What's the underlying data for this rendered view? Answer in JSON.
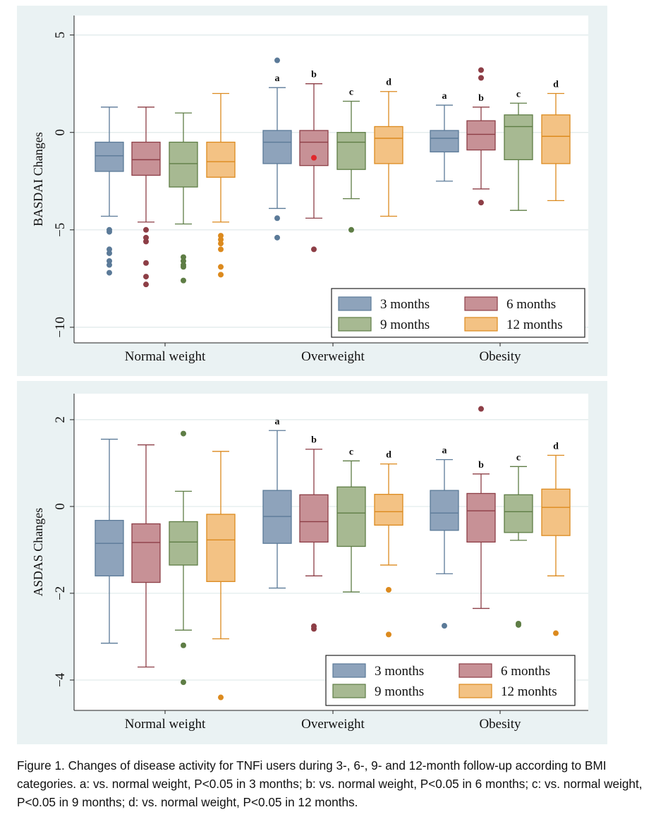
{
  "chart_data": [
    {
      "type": "box",
      "title": "",
      "ylabel": "BASDAI Changes",
      "xlabel": "",
      "ylim": [
        -10.8,
        6
      ],
      "yticks": [
        5,
        0,
        -5,
        -10
      ],
      "ytick_labels": [
        "5",
        "0",
        "−5",
        "−10"
      ],
      "grid": true,
      "legend": {
        "placement": "bottom-right",
        "columns": 2
      },
      "categories": [
        "Normal weight",
        "Overweight",
        "Obesity"
      ],
      "series": [
        {
          "name": "3 months",
          "color": "#5b7a98",
          "fill": "#8ea3bb",
          "boxes": [
            {
              "whislo": -4.3,
              "q1": -2.0,
              "med": -1.2,
              "q3": -0.5,
              "whishi": 1.3,
              "fliers": [
                -5.0,
                -5.1,
                -6.0,
                -6.2,
                -6.6,
                -6.8,
                -7.2
              ]
            },
            {
              "whislo": -3.9,
              "q1": -1.6,
              "med": -0.5,
              "q3": 0.1,
              "whishi": 2.3,
              "fliers": [
                3.7,
                -4.4,
                -5.4
              ],
              "sig": "a"
            },
            {
              "whislo": -2.5,
              "q1": -1.0,
              "med": -0.3,
              "q3": 0.1,
              "whishi": 1.4,
              "fliers": [],
              "sig": "a"
            }
          ]
        },
        {
          "name": "6 months",
          "color": "#8d3e46",
          "fill": "#c79196",
          "boxes": [
            {
              "whislo": -4.6,
              "q1": -2.2,
              "med": -1.4,
              "q3": -0.5,
              "whishi": 1.3,
              "fliers": [
                -5.0,
                -5.4,
                -5.6,
                -6.7,
                -7.4,
                -7.8
              ]
            },
            {
              "whislo": -4.4,
              "q1": -1.7,
              "med": -0.5,
              "q3": 0.1,
              "whishi": 2.5,
              "fliers": [
                -6.0
              ],
              "mean": -1.3,
              "sig": "b"
            },
            {
              "whislo": -2.9,
              "q1": -0.9,
              "med": -0.1,
              "q3": 0.6,
              "whishi": 1.3,
              "fliers": [
                3.2,
                2.8,
                -3.6
              ],
              "sig": "b"
            }
          ]
        },
        {
          "name": "9 months",
          "color": "#5e7d45",
          "fill": "#a7b992",
          "boxes": [
            {
              "whislo": -4.7,
              "q1": -2.8,
              "med": -1.6,
              "q3": -0.5,
              "whishi": 1.0,
              "fliers": [
                -6.4,
                -6.6,
                -6.8,
                -6.9,
                -7.6
              ]
            },
            {
              "whislo": -3.4,
              "q1": -1.9,
              "med": -0.5,
              "q3": 0.0,
              "whishi": 1.6,
              "fliers": [
                -5.0
              ],
              "sig": "c"
            },
            {
              "whislo": -4.0,
              "q1": -1.4,
              "med": 0.3,
              "q3": 0.9,
              "whishi": 1.5,
              "fliers": [],
              "sig": "c"
            }
          ]
        },
        {
          "name": "12 months",
          "color": "#dc8a1e",
          "fill": "#f3c284",
          "boxes": [
            {
              "whislo": -4.6,
              "q1": -2.3,
              "med": -1.5,
              "q3": -0.5,
              "whishi": 2.0,
              "fliers": [
                -5.3,
                -5.5,
                -5.7,
                -6.0,
                -6.9,
                -7.3
              ]
            },
            {
              "whislo": -4.3,
              "q1": -1.6,
              "med": -0.3,
              "q3": 0.3,
              "whishi": 2.1,
              "fliers": [],
              "sig": "d"
            },
            {
              "whislo": -3.5,
              "q1": -1.6,
              "med": -0.2,
              "q3": 0.9,
              "whishi": 2.0,
              "fliers": [],
              "sig": "d"
            }
          ]
        }
      ]
    },
    {
      "type": "box",
      "title": "",
      "ylabel": "ASDAS Changes",
      "xlabel": "",
      "ylim": [
        -4.7,
        2.6
      ],
      "yticks": [
        2,
        0,
        -2,
        -4
      ],
      "ytick_labels": [
        "2",
        "0",
        "−2",
        "−4"
      ],
      "grid": true,
      "legend": {
        "placement": "bottom-right",
        "columns": 2
      },
      "categories": [
        "Normal weight",
        "Overweight",
        "Obesity"
      ],
      "series": [
        {
          "name": "3 months",
          "color": "#5b7a98",
          "fill": "#8ea3bb",
          "boxes": [
            {
              "whislo": -3.15,
              "q1": -1.6,
              "med": -0.85,
              "q3": -0.32,
              "whishi": 1.55,
              "fliers": []
            },
            {
              "whislo": -1.88,
              "q1": -0.85,
              "med": -0.23,
              "q3": 0.37,
              "whishi": 1.75,
              "fliers": [],
              "sig": "a"
            },
            {
              "whislo": -1.55,
              "q1": -0.55,
              "med": -0.15,
              "q3": 0.37,
              "whishi": 1.08,
              "fliers": [
                -2.75
              ],
              "sig": "a"
            }
          ]
        },
        {
          "name": "6 months",
          "color": "#8d3e46",
          "fill": "#c79196",
          "boxes": [
            {
              "whislo": -3.7,
              "q1": -1.75,
              "med": -0.83,
              "q3": -0.4,
              "whishi": 1.42,
              "fliers": []
            },
            {
              "whislo": -1.6,
              "q1": -0.82,
              "med": -0.35,
              "q3": 0.27,
              "whishi": 1.32,
              "fliers": [
                -2.76,
                -2.82
              ],
              "sig": "b"
            },
            {
              "whislo": -2.35,
              "q1": -0.82,
              "med": -0.1,
              "q3": 0.3,
              "whishi": 0.75,
              "fliers": [
                2.25
              ],
              "sig": "b"
            }
          ]
        },
        {
          "name": "9 months",
          "color": "#5e7d45",
          "fill": "#a7b992",
          "boxes": [
            {
              "whislo": -2.85,
              "q1": -1.35,
              "med": -0.82,
              "q3": -0.35,
              "whishi": 0.35,
              "fliers": [
                1.68,
                -3.2,
                -4.05
              ]
            },
            {
              "whislo": -1.97,
              "q1": -0.92,
              "med": -0.15,
              "q3": 0.45,
              "whishi": 1.05,
              "fliers": [],
              "sig": "c"
            },
            {
              "whislo": -0.78,
              "q1": -0.6,
              "med": -0.12,
              "q3": 0.27,
              "whishi": 0.92,
              "fliers": [
                -2.7,
                -2.73
              ],
              "sig": "c"
            }
          ]
        },
        {
          "name": "12 monhts",
          "color": "#dc8a1e",
          "fill": "#f3c284",
          "boxes": [
            {
              "whislo": -3.05,
              "q1": -1.73,
              "med": -0.77,
              "q3": -0.18,
              "whishi": 1.27,
              "fliers": [
                -4.4
              ]
            },
            {
              "whislo": -1.35,
              "q1": -0.43,
              "med": -0.12,
              "q3": 0.28,
              "whishi": 0.98,
              "fliers": [
                -1.92,
                -2.95
              ],
              "sig": "d"
            },
            {
              "whislo": -1.6,
              "q1": -0.67,
              "med": -0.02,
              "q3": 0.4,
              "whishi": 1.18,
              "fliers": [
                -2.92
              ],
              "sig": "d"
            }
          ]
        }
      ]
    }
  ],
  "caption": "Figure 1. Changes of disease activity for TNFi users during 3-, 6-, 9- and 12-month follow-up according to BMI categories. a: vs. normal weight, P<0.05 in 3 months; b: vs. normal weight, P<0.05 in 6 months; c: vs. normal weight, P<0.05 in 9 months; d: vs. normal weight, P<0.05 in 12 months."
}
